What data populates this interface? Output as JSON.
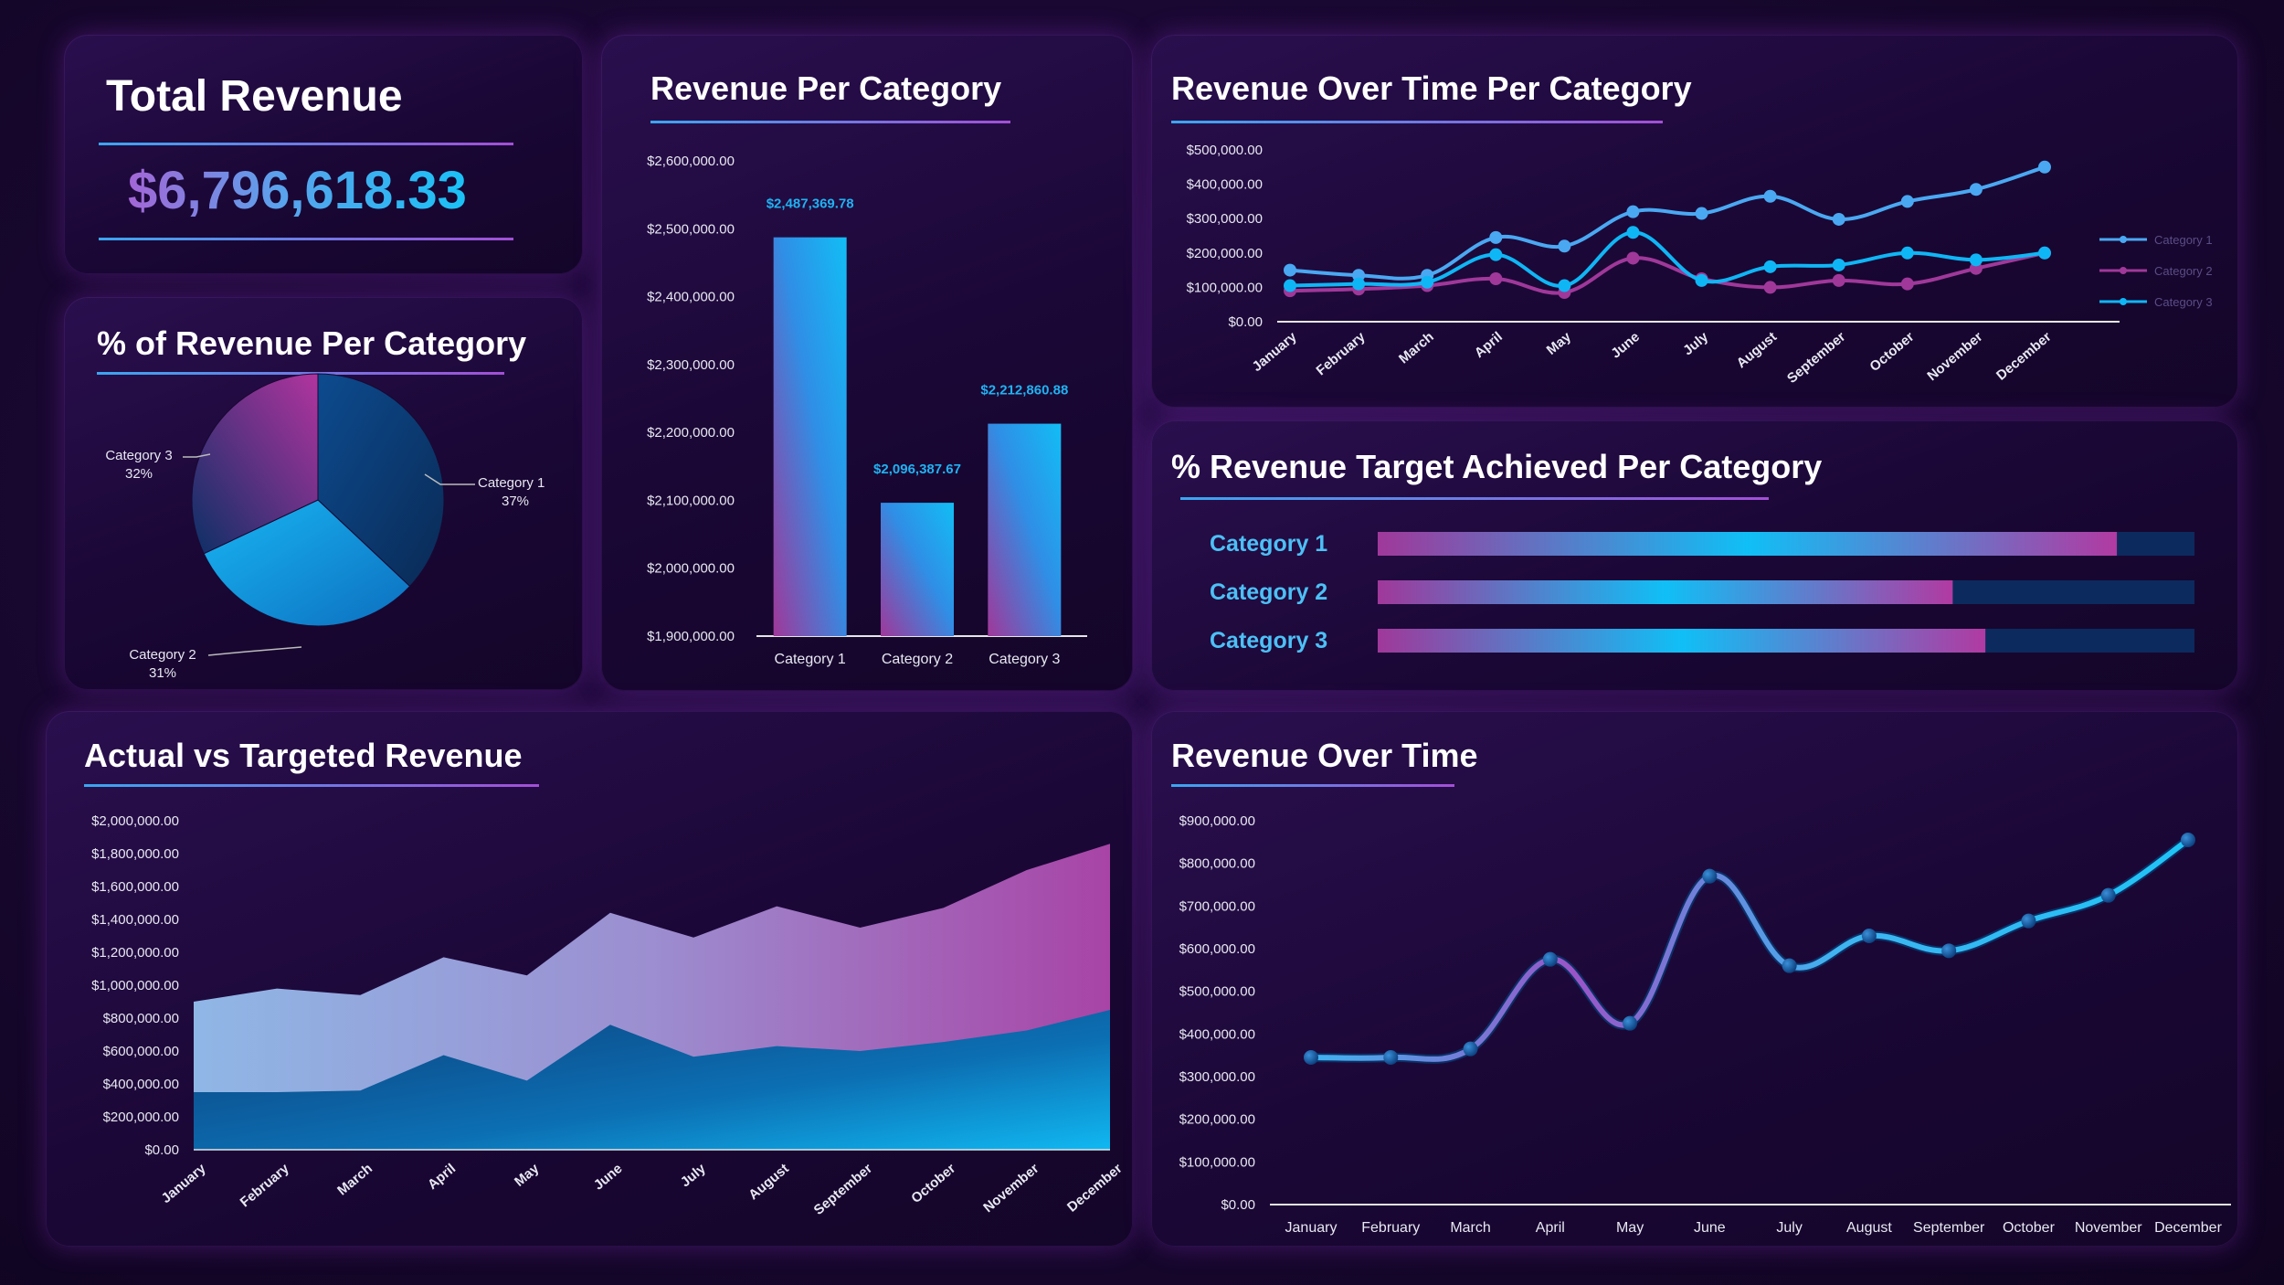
{
  "colors": {
    "cat1": "#4aa8f2",
    "cat2": "#a0389a",
    "cat3": "#0fb6f5",
    "bg": "#1a0833",
    "pink": "#b33fa6",
    "cyan": "#0fc0f8"
  },
  "total_revenue": {
    "title": "Total Revenue",
    "value": "$6,796,618.33"
  },
  "chart_data": [
    {
      "id": "pie",
      "type": "pie",
      "title": "% of Revenue Per Category",
      "slices": [
        {
          "label": "Category 1",
          "pct_label": "37%",
          "value": 37
        },
        {
          "label": "Category 2",
          "pct_label": "31%",
          "value": 31
        },
        {
          "label": "Category 3",
          "pct_label": "32%",
          "value": 32
        }
      ]
    },
    {
      "id": "bar",
      "type": "bar",
      "title": "Revenue Per Category",
      "categories": [
        "Category 1",
        "Category 2",
        "Category 3"
      ],
      "values": [
        2487369.78,
        2096387.67,
        2212860.88
      ],
      "data_labels": [
        "$2,487,369.78",
        "$2,096,387.67",
        "$2,212,860.88"
      ],
      "ylim": [
        1900000,
        2600000
      ],
      "yticks": [
        1900000,
        2000000,
        2100000,
        2200000,
        2300000,
        2400000,
        2500000,
        2600000
      ],
      "ytick_labels": [
        "$1,900,000.00",
        "$2,000,000.00",
        "$2,100,000.00",
        "$2,200,000.00",
        "$2,300,000.00",
        "$2,400,000.00",
        "$2,500,000.00",
        "$2,600,000.00"
      ]
    },
    {
      "id": "line_cat",
      "type": "line",
      "title": "Revenue Over Time Per Category",
      "categories": [
        "January",
        "February",
        "March",
        "April",
        "May",
        "June",
        "July",
        "August",
        "September",
        "October",
        "November",
        "December"
      ],
      "series": [
        {
          "name": "Category 1",
          "values": [
            150000,
            135000,
            135000,
            245000,
            220000,
            320000,
            315000,
            365000,
            298000,
            350000,
            385000,
            450000
          ]
        },
        {
          "name": "Category 2",
          "values": [
            90000,
            95000,
            105000,
            125000,
            85000,
            185000,
            125000,
            100000,
            120000,
            110000,
            155000,
            200000
          ]
        },
        {
          "name": "Category 3",
          "values": [
            105000,
            110000,
            115000,
            195000,
            105000,
            260000,
            120000,
            160000,
            165000,
            200000,
            180000,
            200000
          ]
        }
      ],
      "ylim": [
        0,
        500000
      ],
      "yticks": [
        0,
        100000,
        200000,
        300000,
        400000,
        500000
      ],
      "ytick_labels": [
        "$0.00",
        "$100,000.00",
        "$200,000.00",
        "$300,000.00",
        "$400,000.00",
        "$500,000.00"
      ]
    },
    {
      "id": "target",
      "type": "bar",
      "title": "% Revenue Target Achieved Per Category",
      "categories": [
        "Category 1",
        "Category 2",
        "Category 3"
      ],
      "values": [
        0.905,
        0.704,
        0.744
      ]
    },
    {
      "id": "area",
      "type": "area",
      "title": "Actual vs Targeted Revenue",
      "categories": [
        "January",
        "February",
        "March",
        "April",
        "May",
        "June",
        "July",
        "August",
        "September",
        "October",
        "November",
        "December"
      ],
      "series": [
        {
          "name": "Actual",
          "values": [
            350000,
            350000,
            360000,
            575000,
            420000,
            760000,
            565000,
            630000,
            600000,
            655000,
            725000,
            850000
          ]
        },
        {
          "name": "Target",
          "values": [
            900000,
            980000,
            940000,
            1170000,
            1060000,
            1440000,
            1290000,
            1480000,
            1350000,
            1470000,
            1700000,
            1860000
          ]
        }
      ],
      "ylim": [
        0,
        2000000
      ],
      "yticks": [
        0,
        200000,
        400000,
        600000,
        800000,
        1000000,
        1200000,
        1400000,
        1600000,
        1800000,
        2000000
      ],
      "ytick_labels": [
        "$0.00",
        "$200,000.00",
        "$400,000.00",
        "$600,000.00",
        "$800,000.00",
        "$1,000,000.00",
        "$1,200,000.00",
        "$1,400,000.00",
        "$1,600,000.00",
        "$1,800,000.00",
        "$2,000,000.00"
      ]
    },
    {
      "id": "line_total",
      "type": "line",
      "title": "Revenue Over Time",
      "categories": [
        "January",
        "February",
        "March",
        "April",
        "May",
        "June",
        "July",
        "August",
        "September",
        "October",
        "November",
        "December"
      ],
      "values": [
        345000,
        345000,
        365000,
        575000,
        425000,
        770000,
        560000,
        630000,
        595000,
        665000,
        725000,
        855000
      ],
      "ylim": [
        0,
        900000
      ],
      "yticks": [
        0,
        100000,
        200000,
        300000,
        400000,
        500000,
        600000,
        700000,
        800000,
        900000
      ],
      "ytick_labels": [
        "$0.00",
        "$100,000.00",
        "$200,000.00",
        "$300,000.00",
        "$400,000.00",
        "$500,000.00",
        "$600,000.00",
        "$700,000.00",
        "$800,000.00",
        "$900,000.00"
      ]
    }
  ]
}
